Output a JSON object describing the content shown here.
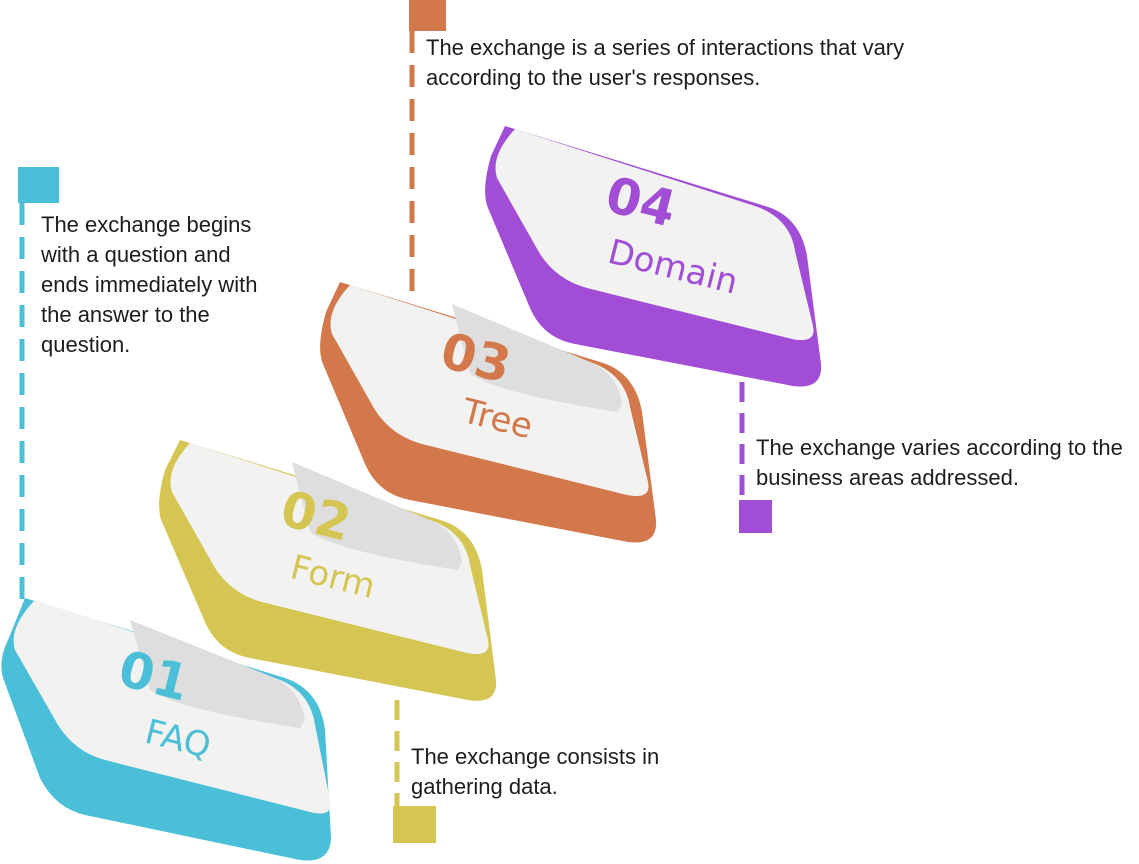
{
  "steps": [
    {
      "number": "01",
      "label": "FAQ",
      "description": "The exchange begins with a question and ends immediately with the answer to the question.",
      "color": "#4bbfd8"
    },
    {
      "number": "02",
      "label": "Form",
      "description": "The exchange consists in gathering data.",
      "color": "#d5c553"
    },
    {
      "number": "03",
      "label": "Tree",
      "description": "The exchange is a series of interactions that vary according to the user's responses.",
      "color": "#d2784a"
    },
    {
      "number": "04",
      "label": "Domain",
      "description": "The exchange varies according to the business areas addressed.",
      "color": "#a24dd6"
    }
  ],
  "card_face_color": "#f2f2f1",
  "card_shadow_color": "#dedede"
}
